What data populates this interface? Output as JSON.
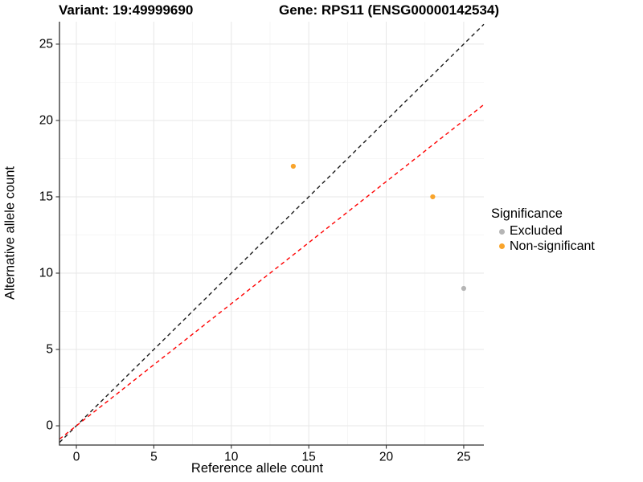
{
  "chart_data": {
    "type": "scatter",
    "title_left": "Variant: 19:49999690",
    "title_right": "Gene: RPS11 (ENSG00000142534)",
    "xlabel": "Reference allele count",
    "ylabel": "Alternative allele count",
    "xlim": [
      -1.09,
      26.3
    ],
    "ylim": [
      -1.26,
      26.47
    ],
    "x_ticks": [
      0,
      5,
      10,
      15,
      20,
      25
    ],
    "y_ticks": [
      0,
      5,
      10,
      15,
      20,
      25
    ],
    "x_minor_ticks": [
      2.5,
      7.5,
      12.5,
      17.5,
      22.5
    ],
    "y_minor_ticks": [
      2.5,
      7.5,
      12.5,
      17.5,
      22.5
    ],
    "grid": true,
    "legend_position": "right",
    "legend": {
      "title": "Significance",
      "items": [
        {
          "label": "Excluded",
          "color": "#B5B5B5"
        },
        {
          "label": "Non-significant",
          "color": "#F9A42B"
        }
      ]
    },
    "series": [
      {
        "category": "Non-significant",
        "points": [
          [
            14,
            17
          ],
          [
            23,
            15
          ]
        ]
      },
      {
        "category": "Excluded",
        "points": [
          [
            25,
            9
          ]
        ]
      }
    ],
    "lines": [
      {
        "name": "identity-line",
        "slope": 1,
        "intercept": 0,
        "color": "#1A1A1A",
        "dash": "dashed"
      },
      {
        "name": "ratio-line",
        "slope": 0.8,
        "intercept": 0,
        "color": "#FF0000",
        "dash": "dashed"
      }
    ],
    "colors": {
      "grid_major": "#E7E7E7",
      "grid_minor": "#F3F3F3",
      "axis_line": "#2E2E2E",
      "tick_mark": "#333333",
      "tick_label": "#000000"
    }
  }
}
